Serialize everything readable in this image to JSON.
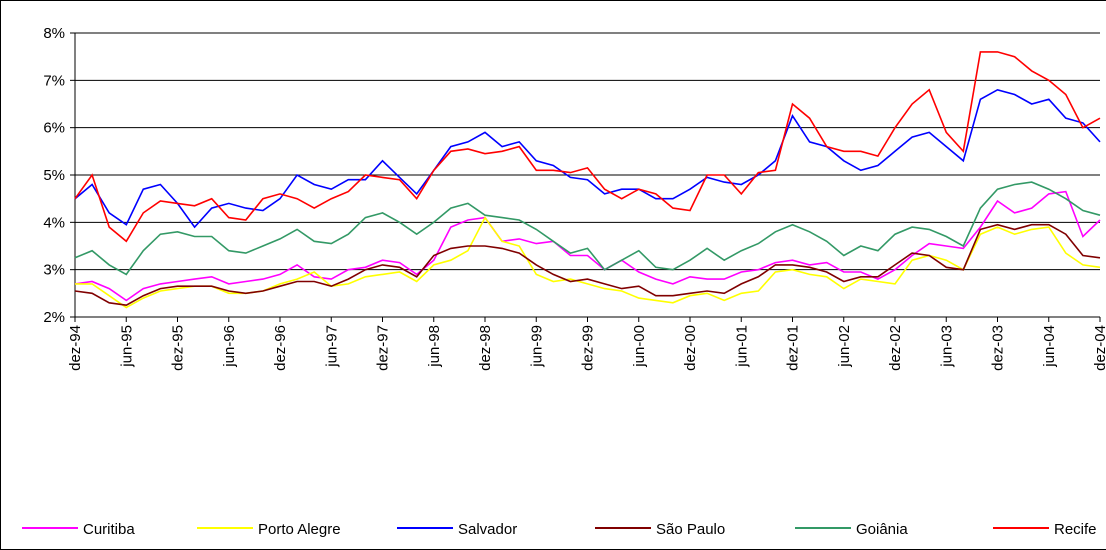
{
  "chart_data": {
    "type": "line",
    "categories": [
      "dez-94",
      null,
      null,
      "jun-95",
      null,
      null,
      "dez-95",
      null,
      null,
      "jun-96",
      null,
      null,
      "dez-96",
      null,
      null,
      "jun-97",
      null,
      null,
      "dez-97",
      null,
      null,
      "jun-98",
      null,
      null,
      "dez-98",
      null,
      null,
      "jun-99",
      null,
      null,
      "dez-99",
      null,
      null,
      "jun-00",
      null,
      null,
      "dez-00",
      null,
      null,
      "jun-01",
      null,
      null,
      "dez-01",
      null,
      null,
      "jun-02",
      null,
      null,
      "dez-02",
      null,
      null,
      "jun-03",
      null,
      null,
      "dez-03",
      null,
      null,
      "jun-04",
      null,
      null,
      "dez-04"
    ],
    "ylim": [
      2,
      8
    ],
    "yticks": [
      {
        "value": 2,
        "label": "2%"
      },
      {
        "value": 3,
        "label": "3%"
      },
      {
        "value": 4,
        "label": "4%"
      },
      {
        "value": 5,
        "label": "5%"
      },
      {
        "value": 6,
        "label": "6%"
      },
      {
        "value": 7,
        "label": "7%"
      },
      {
        "value": 8,
        "label": "8%"
      }
    ],
    "grid": true,
    "legend": "bottom",
    "series": [
      {
        "name": "Curitiba",
        "color": "#ff00ff",
        "values": [
          2.7,
          2.75,
          2.6,
          2.35,
          2.6,
          2.7,
          2.75,
          2.8,
          2.85,
          2.7,
          2.75,
          2.8,
          2.9,
          3.1,
          2.85,
          2.8,
          3.0,
          3.05,
          3.2,
          3.15,
          2.9,
          3.2,
          3.9,
          4.05,
          4.1,
          3.6,
          3.65,
          3.55,
          3.6,
          3.3,
          3.3,
          3.0,
          3.2,
          2.95,
          2.8,
          2.7,
          2.85,
          2.8,
          2.8,
          2.95,
          3.0,
          3.15,
          3.2,
          3.1,
          3.15,
          2.95,
          2.95,
          2.8,
          3.0,
          3.3,
          3.55,
          3.5,
          3.45,
          3.9,
          4.45,
          4.2,
          4.3,
          4.6,
          4.65,
          3.7,
          4.05
        ]
      },
      {
        "name": "Porto Alegre",
        "color": "#ffff00",
        "values": [
          2.7,
          2.7,
          2.45,
          2.2,
          2.4,
          2.55,
          2.6,
          2.65,
          2.65,
          2.5,
          2.5,
          2.55,
          2.7,
          2.8,
          2.95,
          2.65,
          2.7,
          2.85,
          2.9,
          2.95,
          2.75,
          3.1,
          3.2,
          3.4,
          4.1,
          3.6,
          3.5,
          2.9,
          2.75,
          2.8,
          2.7,
          2.6,
          2.55,
          2.4,
          2.35,
          2.3,
          2.45,
          2.5,
          2.35,
          2.5,
          2.55,
          2.95,
          3.0,
          2.9,
          2.85,
          2.6,
          2.8,
          2.75,
          2.7,
          3.2,
          3.3,
          3.2,
          3.0,
          3.75,
          3.9,
          3.75,
          3.85,
          3.9,
          3.35,
          3.1,
          3.05
        ]
      },
      {
        "name": "Salvador",
        "color": "#0000ff",
        "values": [
          4.5,
          4.8,
          4.2,
          3.95,
          4.7,
          4.8,
          4.4,
          3.9,
          4.3,
          4.4,
          4.3,
          4.25,
          4.5,
          5.0,
          4.8,
          4.7,
          4.9,
          4.9,
          5.3,
          4.95,
          4.6,
          5.1,
          5.6,
          5.7,
          5.9,
          5.6,
          5.7,
          5.3,
          5.2,
          4.95,
          4.9,
          4.6,
          4.7,
          4.7,
          4.5,
          4.5,
          4.7,
          4.95,
          4.85,
          4.8,
          5.0,
          5.3,
          6.25,
          5.7,
          5.6,
          5.3,
          5.1,
          5.2,
          5.5,
          5.8,
          5.9,
          5.6,
          5.3,
          6.6,
          6.8,
          6.7,
          6.5,
          6.6,
          6.2,
          6.1,
          5.7
        ]
      },
      {
        "name": "São Paulo",
        "color": "#800000",
        "values": [
          2.55,
          2.5,
          2.3,
          2.25,
          2.45,
          2.6,
          2.65,
          2.65,
          2.65,
          2.55,
          2.5,
          2.55,
          2.65,
          2.75,
          2.75,
          2.65,
          2.8,
          3.0,
          3.1,
          3.05,
          2.85,
          3.3,
          3.45,
          3.5,
          3.5,
          3.45,
          3.35,
          3.1,
          2.9,
          2.75,
          2.8,
          2.7,
          2.6,
          2.65,
          2.45,
          2.45,
          2.5,
          2.55,
          2.5,
          2.7,
          2.85,
          3.1,
          3.1,
          3.05,
          2.95,
          2.75,
          2.85,
          2.85,
          3.1,
          3.35,
          3.3,
          3.05,
          3.0,
          3.85,
          3.95,
          3.85,
          3.95,
          3.95,
          3.75,
          3.3,
          3.25
        ]
      },
      {
        "name": "Goiânia",
        "color": "#339966",
        "values": [
          3.25,
          3.4,
          3.1,
          2.9,
          3.4,
          3.75,
          3.8,
          3.7,
          3.7,
          3.4,
          3.35,
          3.5,
          3.65,
          3.85,
          3.6,
          3.55,
          3.75,
          4.1,
          4.2,
          4.0,
          3.75,
          4.0,
          4.3,
          4.4,
          4.15,
          4.1,
          4.05,
          3.85,
          3.6,
          3.35,
          3.45,
          3.0,
          3.2,
          3.4,
          3.05,
          3.0,
          3.2,
          3.45,
          3.2,
          3.4,
          3.55,
          3.8,
          3.95,
          3.8,
          3.6,
          3.3,
          3.5,
          3.4,
          3.75,
          3.9,
          3.85,
          3.7,
          3.5,
          4.3,
          4.7,
          4.8,
          4.85,
          4.7,
          4.5,
          4.25,
          4.15
        ]
      },
      {
        "name": "Recife",
        "color": "#ff0000",
        "values": [
          4.5,
          5.0,
          3.9,
          3.6,
          4.2,
          4.45,
          4.4,
          4.35,
          4.5,
          4.1,
          4.05,
          4.5,
          4.6,
          4.5,
          4.3,
          4.5,
          4.65,
          5.0,
          4.95,
          4.9,
          4.5,
          5.1,
          5.5,
          5.55,
          5.45,
          5.5,
          5.6,
          5.1,
          5.1,
          5.05,
          5.15,
          4.7,
          4.5,
          4.7,
          4.6,
          4.3,
          4.25,
          5.0,
          5.0,
          4.6,
          5.05,
          5.1,
          6.5,
          6.2,
          5.6,
          5.5,
          5.5,
          5.4,
          6.0,
          6.5,
          6.8,
          5.9,
          5.5,
          7.6,
          7.6,
          7.5,
          7.2,
          7.0,
          6.7,
          6.0,
          6.2
        ]
      }
    ]
  }
}
